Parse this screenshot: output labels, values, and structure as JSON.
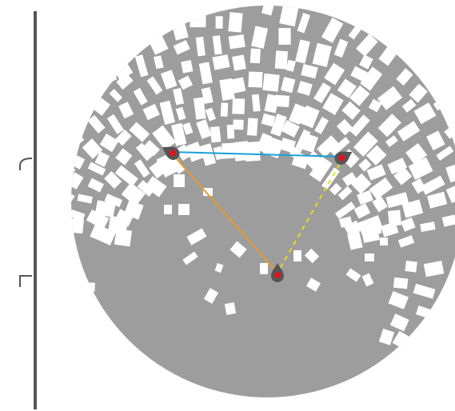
{
  "colors": {
    "background": "#ffffff",
    "disc": "#9d9d9d",
    "cutout": "#ffffff",
    "scale_bar": "#555555",
    "marker_body": "#555555",
    "marker_dot": "#e0141e",
    "edge_top": "#1a9fd6",
    "edge_left": "#e89a2c",
    "edge_right": "#e2df1a"
  },
  "markers": [
    {
      "name": "marker-left"
    },
    {
      "name": "marker-right"
    },
    {
      "name": "marker-bottom"
    }
  ],
  "edges": [
    {
      "name": "edge-left-right",
      "from": 0,
      "to": 1,
      "color_key": "edge_top",
      "style": "solid"
    },
    {
      "name": "edge-left-bottom",
      "from": 0,
      "to": 2,
      "color_key": "edge_left",
      "style": "solid"
    },
    {
      "name": "edge-right-bottom",
      "from": 1,
      "to": 2,
      "color_key": "edge_right",
      "style": "dashed"
    }
  ],
  "scale_ticks": [
    {
      "name": "scale-tick-upper",
      "shape": "hook"
    },
    {
      "name": "scale-tick-lower",
      "shape": "bracket"
    }
  ]
}
